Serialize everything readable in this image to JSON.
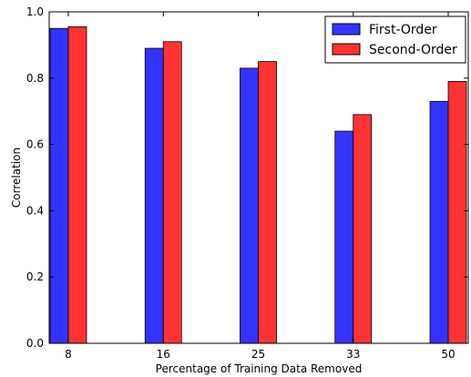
{
  "chart_data": {
    "type": "bar",
    "categories": [
      "8",
      "16",
      "25",
      "33",
      "50"
    ],
    "series": [
      {
        "name": "First-Order",
        "color": "#3333ff",
        "values": [
          0.95,
          0.89,
          0.83,
          0.64,
          0.73
        ]
      },
      {
        "name": "Second-Order",
        "color": "#ff3333",
        "values": [
          0.955,
          0.91,
          0.85,
          0.69,
          0.79
        ]
      }
    ],
    "xlabel": "Percentage of Training Data Removed",
    "ylabel": "Correlation",
    "ylim": [
      0.0,
      1.0
    ],
    "yticks": [
      "0.0",
      "0.2",
      "0.4",
      "0.6",
      "0.8",
      "1.0"
    ],
    "legend_position": "top-right",
    "grid": false
  }
}
